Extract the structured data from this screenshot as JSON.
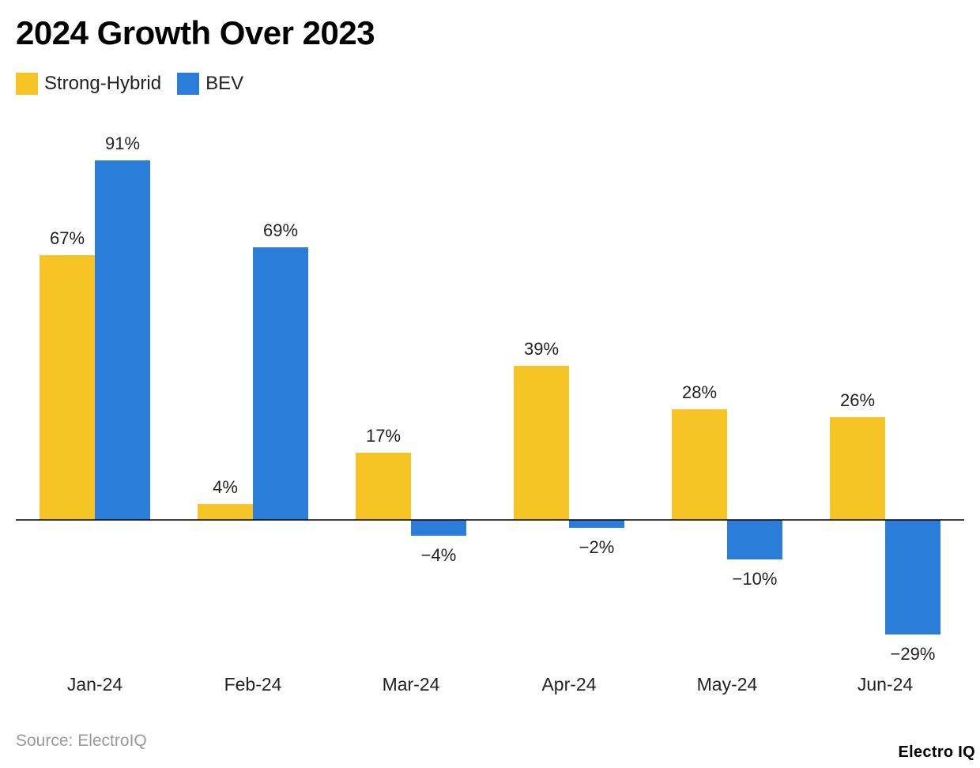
{
  "title": "2024 Growth Over 2023",
  "legend": [
    {
      "label": "Strong-Hybrid",
      "color": "#F7C425"
    },
    {
      "label": "BEV",
      "color": "#2A7DD8"
    }
  ],
  "source": "Source: ElectroIQ",
  "brand": "Electro IQ",
  "chart_data": {
    "type": "bar",
    "title": "2024 Growth Over 2023",
    "categories": [
      "Jan-24",
      "Feb-24",
      "Mar-24",
      "Apr-24",
      "May-24",
      "Jun-24"
    ],
    "series": [
      {
        "name": "Strong-Hybrid",
        "color": "#F7C425",
        "values": [
          67,
          4,
          17,
          39,
          28,
          26
        ],
        "labels": [
          "67%",
          "4%",
          "17%",
          "39%",
          "28%",
          "26%"
        ]
      },
      {
        "name": "BEV",
        "color": "#2A7DD8",
        "values": [
          91,
          69,
          -4,
          -2,
          -10,
          -29
        ],
        "labels": [
          "91%",
          "69%",
          "−4%",
          "−2%",
          "−10%",
          "−29%"
        ]
      }
    ],
    "unit": "%",
    "xlabel": "",
    "ylabel": "",
    "ylim": [
      -29,
      91
    ],
    "grid": false,
    "legend_position": "top-left"
  }
}
